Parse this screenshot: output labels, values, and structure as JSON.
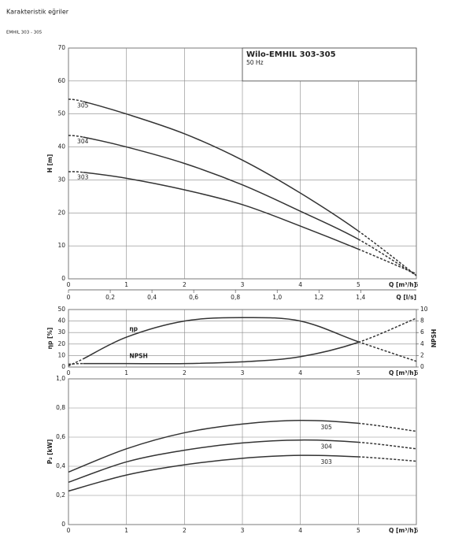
{
  "header": {
    "title": "Karakteristik eğriler",
    "subtitle": "EMHIL 303 - 305"
  },
  "chart_data": [
    {
      "type": "line",
      "box_title": "Wilo-EMHIL 303-305",
      "box_subtitle": "50 Hz",
      "x": [
        0,
        0.25,
        1,
        2,
        3,
        4,
        5,
        6
      ],
      "xlim": [
        0,
        6
      ],
      "xticks": [
        0,
        1,
        2,
        3,
        4,
        5,
        6
      ],
      "x_label": "Q [m³/h]",
      "x2lim": [
        0,
        1.6667
      ],
      "x2ticks": [
        0,
        {
          "value": 0.2,
          "label": "0,2"
        },
        {
          "value": 0.4,
          "label": "0,4"
        },
        {
          "value": 0.6,
          "label": "0,6"
        },
        {
          "value": 0.8,
          "label": "0,8"
        },
        {
          "value": 1.0,
          "label": "1,0"
        },
        {
          "value": 1.2,
          "label": "1,2"
        },
        {
          "value": 1.4,
          "label": "1,4"
        }
      ],
      "x2_label": "Q [l/s]",
      "ylim": [
        0,
        70
      ],
      "yticks": [
        0,
        10,
        20,
        30,
        40,
        50,
        60,
        70
      ],
      "y_label": "H [m]",
      "grid": true,
      "series": [
        {
          "name": "305",
          "color": "#333333",
          "values": [
            54.5,
            53.8,
            50,
            44,
            36,
            26,
            14.5,
            1
          ]
        },
        {
          "name": "304",
          "color": "#333333",
          "values": [
            43.5,
            43,
            40,
            35,
            28.5,
            20.5,
            12,
            1
          ]
        },
        {
          "name": "303",
          "color": "#333333",
          "values": [
            32.5,
            32.3,
            30.5,
            27,
            22.5,
            16,
            9,
            1.5
          ]
        }
      ]
    },
    {
      "type": "line",
      "x": [
        0,
        0.25,
        1,
        2,
        3,
        4,
        5,
        6
      ],
      "xlim": [
        0,
        6
      ],
      "xticks": [
        0,
        1,
        2,
        3,
        4,
        5,
        6
      ],
      "x_label": "Q [m³/h]",
      "ylim": [
        0,
        50
      ],
      "yticks": [
        0,
        10,
        20,
        30,
        40,
        50
      ],
      "y_label": "ηp [%]",
      "y2lim": [
        0,
        10
      ],
      "y2ticks": [
        0,
        2,
        4,
        6,
        8,
        10
      ],
      "y2_label": "NPSH",
      "grid": true,
      "series": [
        {
          "name": "ηp",
          "color": "#333333",
          "values": [
            1,
            7,
            26,
            40,
            43,
            40,
            22,
            5
          ]
        },
        {
          "name": "NPSH",
          "color": "#333333",
          "axis": "y2",
          "values": [
            0.5,
            0.6,
            0.6,
            0.6,
            0.9,
            1.8,
            4.3,
            8.5
          ]
        }
      ]
    },
    {
      "type": "line",
      "x": [
        0,
        1,
        2,
        3,
        4,
        5,
        6
      ],
      "xlim": [
        0,
        6
      ],
      "xticks": [
        0,
        1,
        2,
        3,
        4,
        5,
        6
      ],
      "x_label": "Q [m³/h]",
      "ylim": [
        0,
        1.0
      ],
      "yticks": [
        0,
        {
          "value": 0.2,
          "label": "0,2"
        },
        {
          "value": 0.4,
          "label": "0,4"
        },
        {
          "value": 0.6,
          "label": "0,6"
        },
        {
          "value": 0.8,
          "label": "0,8"
        },
        {
          "value": 1.0,
          "label": "1,0"
        }
      ],
      "y_label": "P₂ [kW]",
      "grid": true,
      "series": [
        {
          "name": "305",
          "color": "#333333",
          "values": [
            0.36,
            0.52,
            0.63,
            0.69,
            0.715,
            0.695,
            0.64
          ]
        },
        {
          "name": "304",
          "color": "#333333",
          "values": [
            0.29,
            0.43,
            0.51,
            0.56,
            0.58,
            0.565,
            0.52
          ]
        },
        {
          "name": "303",
          "color": "#333333",
          "values": [
            0.23,
            0.34,
            0.41,
            0.455,
            0.475,
            0.465,
            0.435
          ]
        }
      ]
    }
  ]
}
